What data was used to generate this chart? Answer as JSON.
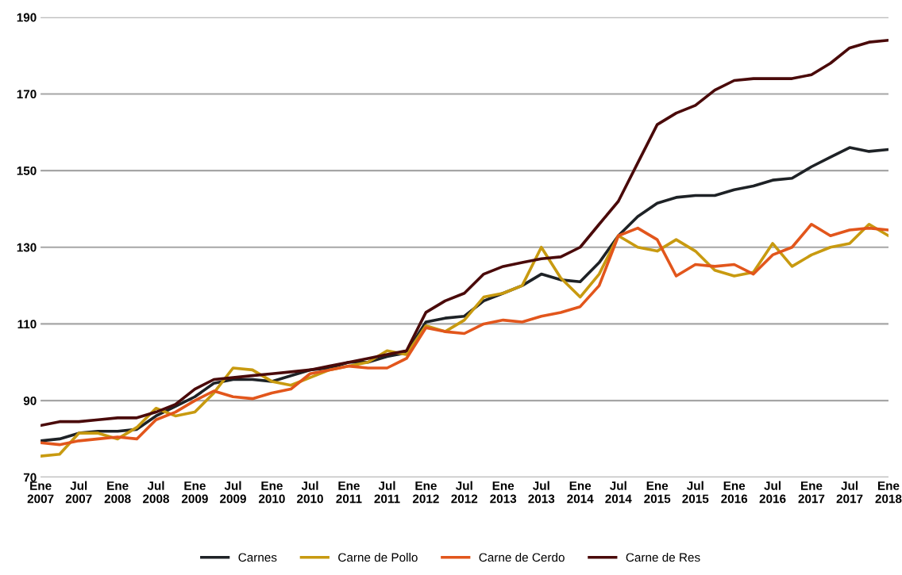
{
  "chart_data": {
    "type": "line",
    "x": [
      "2007-01",
      "2007-04",
      "2007-07",
      "2007-10",
      "2008-01",
      "2008-04",
      "2008-07",
      "2008-10",
      "2009-01",
      "2009-04",
      "2009-07",
      "2009-10",
      "2010-01",
      "2010-04",
      "2010-07",
      "2010-10",
      "2011-01",
      "2011-04",
      "2011-07",
      "2011-10",
      "2012-01",
      "2012-04",
      "2012-07",
      "2012-10",
      "2013-01",
      "2013-04",
      "2013-07",
      "2013-10",
      "2014-01",
      "2014-04",
      "2014-07",
      "2014-10",
      "2015-01",
      "2015-04",
      "2015-07",
      "2015-10",
      "2016-01",
      "2016-04",
      "2016-07",
      "2016-10",
      "2017-01",
      "2017-04",
      "2017-07",
      "2017-10",
      "2018-01"
    ],
    "series": [
      {
        "name": "Carnes",
        "color": "#1e2226",
        "values": [
          79.5,
          80,
          81.5,
          82,
          82,
          82.5,
          86,
          88.5,
          91,
          94.5,
          95.5,
          95.5,
          95,
          96.5,
          98,
          98.5,
          100,
          100,
          101.5,
          102.5,
          110.5,
          111.5,
          112,
          116,
          118,
          120,
          123,
          121.5,
          121,
          126,
          133,
          138,
          141.5,
          143,
          143.5,
          143.5,
          145,
          146,
          147.5,
          148,
          151,
          153.5,
          156,
          155,
          155.5
        ]
      },
      {
        "name": "Carne de Pollo",
        "color": "#c89a10",
        "values": [
          75.5,
          76,
          81.5,
          81.5,
          80,
          83,
          88,
          86,
          87,
          92,
          98.5,
          98,
          95,
          94,
          96,
          98,
          99,
          100,
          103,
          102,
          109.5,
          108,
          111,
          117,
          118,
          120,
          130,
          122,
          117,
          123,
          133,
          130,
          129,
          132,
          129,
          124,
          122.5,
          123.5,
          131,
          125,
          128,
          130,
          131,
          136,
          133
        ]
      },
      {
        "name": "Carne de Cerdo",
        "color": "#e2561c",
        "values": [
          79,
          78.5,
          79.5,
          80,
          80.5,
          80,
          85,
          87,
          90,
          92.5,
          91,
          90.5,
          92,
          93,
          97,
          98,
          99,
          98.5,
          98.5,
          101,
          109,
          108,
          107.5,
          110,
          111,
          110.5,
          112,
          113,
          114.5,
          120,
          133,
          135,
          132,
          122.5,
          125.5,
          125,
          125.5,
          123,
          128,
          130,
          136,
          133,
          134.5,
          135,
          134.5
        ]
      },
      {
        "name": "Carne de Res",
        "color": "#4a0a0a",
        "values": [
          83.5,
          84.5,
          84.5,
          85,
          85.5,
          85.5,
          87,
          89,
          93,
          95.5,
          96,
          96.5,
          97,
          97.5,
          98,
          99,
          100,
          101,
          102,
          103,
          113,
          116,
          118,
          123,
          125,
          126,
          127,
          127.5,
          130,
          136,
          142,
          152,
          162,
          165,
          167,
          171,
          173.5,
          174,
          174,
          174,
          175,
          178,
          182,
          183.5,
          184
        ]
      }
    ],
    "ylim": [
      70,
      190
    ],
    "yticks": [
      70,
      90,
      110,
      130,
      150,
      170,
      190
    ],
    "xlim": [
      "2007-01",
      "2018-01"
    ],
    "xticks": [
      {
        "value": "2007-01",
        "label": "Ene\n2007"
      },
      {
        "value": "2007-07",
        "label": "Jul\n2007"
      },
      {
        "value": "2008-01",
        "label": "Ene\n2008"
      },
      {
        "value": "2008-07",
        "label": "Jul\n2008"
      },
      {
        "value": "2009-01",
        "label": "Ene\n2009"
      },
      {
        "value": "2009-07",
        "label": "Jul\n2009"
      },
      {
        "value": "2010-01",
        "label": "Ene\n2010"
      },
      {
        "value": "2010-07",
        "label": "Jul\n2010"
      },
      {
        "value": "2011-01",
        "label": "Ene\n2011"
      },
      {
        "value": "2011-07",
        "label": "Jul\n2011"
      },
      {
        "value": "2012-01",
        "label": "Ene\n2012"
      },
      {
        "value": "2012-07",
        "label": "Jul\n2012"
      },
      {
        "value": "2013-01",
        "label": "Ene\n2013"
      },
      {
        "value": "2013-07",
        "label": "Jul\n2013"
      },
      {
        "value": "2014-01",
        "label": "Ene\n2014"
      },
      {
        "value": "2014-07",
        "label": "Jul\n2014"
      },
      {
        "value": "2015-01",
        "label": "Ene\n2015"
      },
      {
        "value": "2015-07",
        "label": "Jul\n2015"
      },
      {
        "value": "2016-01",
        "label": "Ene\n2016"
      },
      {
        "value": "2016-07",
        "label": "Jul\n2016"
      },
      {
        "value": "2017-01",
        "label": "Ene\n2017"
      },
      {
        "value": "2017-07",
        "label": "Jul\n2017"
      },
      {
        "value": "2018-01",
        "label": "Ene\n2018"
      }
    ],
    "grid": "y",
    "legend": "bottom",
    "marker": "none",
    "line_style": "solid"
  }
}
